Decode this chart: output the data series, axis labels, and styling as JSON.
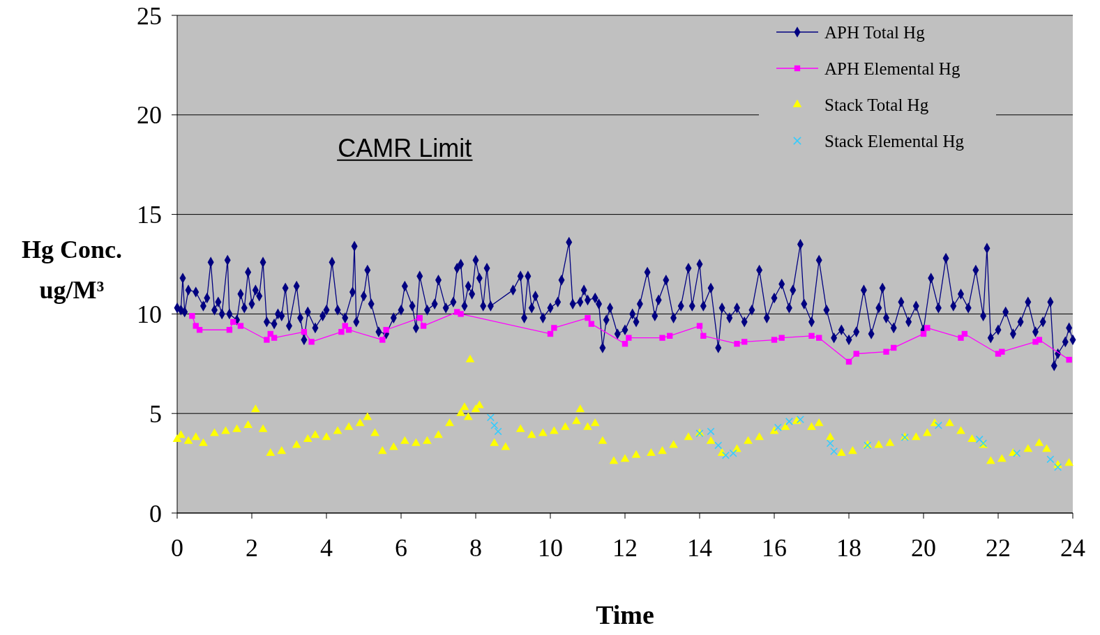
{
  "chart_data": {
    "type": "line",
    "xlabel": "Time",
    "ylabel": "Hg Conc. ug/M³",
    "xlim": [
      0,
      24
    ],
    "xticks": [
      0,
      2,
      4,
      6,
      8,
      10,
      12,
      14,
      16,
      18,
      20,
      22,
      24
    ],
    "ylim": [
      0,
      25
    ],
    "yticks": [
      0,
      5,
      10,
      15,
      20,
      25
    ],
    "grid": "y",
    "legend": "top right",
    "annotations": [
      "CAMR Limit"
    ],
    "series": [
      {
        "name": "APH Total Hg",
        "marker": "diamond",
        "color": "#000080",
        "x": [
          0,
          0.1,
          0.15,
          0.2,
          0.3,
          0.5,
          0.7,
          0.8,
          0.9,
          1.0,
          1.1,
          1.2,
          1.35,
          1.4,
          1.6,
          1.7,
          1.8,
          1.9,
          2.0,
          2.1,
          2.2,
          2.3,
          2.4,
          2.6,
          2.7,
          2.8,
          2.9,
          3.0,
          3.2,
          3.3,
          3.4,
          3.5,
          3.7,
          3.9,
          4.0,
          4.15,
          4.3,
          4.5,
          4.7,
          4.75,
          4.8,
          5.0,
          5.1,
          5.2,
          5.4,
          5.6,
          5.8,
          6.0,
          6.1,
          6.3,
          6.4,
          6.5,
          6.7,
          6.9,
          7.0,
          7.2,
          7.4,
          7.5,
          7.6,
          7.7,
          7.8,
          7.9,
          8.0,
          8.1,
          8.2,
          8.3,
          8.4,
          9.0,
          9.2,
          9.3,
          9.4,
          9.5,
          9.6,
          9.8,
          10.0,
          10.2,
          10.3,
          10.5,
          10.6,
          10.8,
          10.9,
          11.0,
          11.2,
          11.3,
          11.4,
          11.5,
          11.6,
          11.8,
          12.0,
          12.2,
          12.3,
          12.4,
          12.6,
          12.8,
          12.9,
          13.1,
          13.3,
          13.5,
          13.7,
          13.8,
          14.0,
          14.1,
          14.3,
          14.5,
          14.6,
          14.8,
          15.0,
          15.2,
          15.4,
          15.6,
          15.8,
          16.0,
          16.2,
          16.4,
          16.5,
          16.7,
          16.8,
          17.0,
          17.2,
          17.4,
          17.6,
          17.8,
          18.0,
          18.2,
          18.4,
          18.6,
          18.8,
          18.9,
          19.0,
          19.2,
          19.4,
          19.6,
          19.8,
          20.0,
          20.2,
          20.4,
          20.6,
          20.8,
          21.0,
          21.2,
          21.4,
          21.6,
          21.7,
          21.8,
          22.0,
          22.2,
          22.4,
          22.6,
          22.8,
          23.0,
          23.2,
          23.4,
          23.5,
          23.6,
          23.8,
          23.9,
          24.0
        ],
        "values": [
          10.3,
          10.2,
          11.8,
          10.1,
          11.2,
          11.1,
          10.4,
          10.8,
          12.6,
          10.2,
          10.6,
          10.0,
          12.7,
          10.0,
          9.7,
          11.0,
          10.3,
          12.1,
          10.5,
          11.2,
          10.9,
          12.6,
          9.6,
          9.5,
          10.0,
          9.9,
          11.3,
          9.4,
          11.4,
          9.8,
          8.7,
          10.1,
          9.3,
          9.9,
          10.2,
          12.6,
          10.2,
          9.8,
          11.1,
          13.4,
          9.6,
          10.9,
          12.2,
          10.5,
          9.1,
          9.0,
          9.8,
          10.2,
          11.4,
          10.4,
          9.3,
          11.9,
          10.2,
          10.5,
          11.7,
          10.3,
          10.6,
          12.3,
          12.5,
          10.4,
          11.4,
          11.0,
          12.7,
          11.8,
          10.4,
          12.3,
          10.4,
          11.2,
          11.9,
          9.8,
          11.9,
          10.3,
          10.9,
          9.8,
          10.3,
          10.6,
          11.7,
          13.6,
          10.5,
          10.6,
          11.2,
          10.7,
          10.8,
          10.5,
          8.3,
          9.7,
          10.3,
          9.0,
          9.2,
          10.0,
          9.6,
          10.5,
          12.1,
          9.9,
          10.7,
          11.7,
          9.8,
          10.4,
          12.3,
          10.4,
          12.5,
          10.4,
          11.3,
          8.3,
          10.3,
          9.8,
          10.3,
          9.6,
          10.2,
          12.2,
          9.8,
          10.8,
          11.5,
          10.3,
          11.2,
          13.5,
          10.5,
          9.6,
          12.7,
          10.2,
          8.8,
          9.2,
          8.7,
          9.1,
          11.2,
          9.0,
          10.3,
          11.3,
          9.8,
          9.3,
          10.6,
          9.6,
          10.4,
          9.2,
          11.8,
          10.3,
          12.8,
          10.4,
          11.0,
          10.3,
          12.2,
          9.9,
          13.3,
          8.8,
          9.2,
          10.1,
          9.0,
          9.6,
          10.6,
          9.1,
          9.6,
          10.6,
          7.4,
          8.0,
          8.6,
          9.3,
          8.7
        ]
      },
      {
        "name": "APH Elemental Hg",
        "marker": "square",
        "color": "#ff00ff",
        "x": [
          0.4,
          0.5,
          0.6,
          1.4,
          1.5,
          1.7,
          2.4,
          2.5,
          2.6,
          3.4,
          3.6,
          4.4,
          4.5,
          4.6,
          5.5,
          5.6,
          6.5,
          6.6,
          7.5,
          7.6,
          10.0,
          10.1,
          11.0,
          11.1,
          12.0,
          12.1,
          13.0,
          13.2,
          14.0,
          14.1,
          15.0,
          15.2,
          16.0,
          16.2,
          17.0,
          17.2,
          18.0,
          18.2,
          19.0,
          19.2,
          20.0,
          20.1,
          21.0,
          21.1,
          22.0,
          22.1,
          23.0,
          23.1,
          23.9
        ],
        "values": [
          9.9,
          9.4,
          9.2,
          9.2,
          9.6,
          9.4,
          8.7,
          9.0,
          8.8,
          9.1,
          8.6,
          9.1,
          9.4,
          9.2,
          8.7,
          9.2,
          9.8,
          9.4,
          10.1,
          10.0,
          9.0,
          9.3,
          9.8,
          9.5,
          8.5,
          8.8,
          8.8,
          8.9,
          9.4,
          8.9,
          8.5,
          8.6,
          8.7,
          8.8,
          8.9,
          8.8,
          7.6,
          8.0,
          8.1,
          8.3,
          9.0,
          9.3,
          8.8,
          9.0,
          8.0,
          8.1,
          8.6,
          8.7,
          7.7
        ]
      },
      {
        "name": "Stack Total Hg",
        "type": "scatter",
        "marker": "triangle",
        "color": "#ffff00",
        "x": [
          0,
          0.1,
          0.3,
          0.5,
          0.7,
          1.0,
          1.3,
          1.6,
          1.9,
          2.1,
          2.3,
          2.5,
          2.8,
          3.2,
          3.5,
          3.7,
          4.0,
          4.3,
          4.6,
          4.9,
          5.1,
          5.3,
          5.5,
          5.8,
          6.1,
          6.4,
          6.7,
          7.0,
          7.3,
          7.6,
          7.7,
          7.8,
          7.85,
          8.0,
          8.1,
          8.5,
          8.8,
          9.2,
          9.5,
          9.8,
          10.1,
          10.4,
          10.7,
          10.8,
          11.0,
          11.2,
          11.4,
          11.7,
          12.0,
          12.3,
          12.7,
          13.0,
          13.3,
          13.7,
          14.0,
          14.3,
          14.6,
          15.0,
          15.3,
          15.6,
          16.0,
          16.3,
          16.6,
          17.0,
          17.2,
          17.5,
          17.8,
          18.1,
          18.5,
          18.8,
          19.1,
          19.5,
          19.8,
          20.1,
          20.3,
          20.7,
          21.0,
          21.3,
          21.6,
          21.8,
          22.1,
          22.4,
          22.8,
          23.1,
          23.3,
          23.6,
          23.9
        ],
        "values": [
          3.7,
          3.9,
          3.6,
          3.8,
          3.5,
          4.0,
          4.1,
          4.2,
          4.4,
          5.2,
          4.2,
          3.0,
          3.1,
          3.4,
          3.7,
          3.9,
          3.8,
          4.1,
          4.3,
          4.5,
          4.8,
          4.0,
          3.1,
          3.3,
          3.6,
          3.5,
          3.6,
          3.9,
          4.5,
          5.0,
          5.3,
          4.8,
          7.7,
          5.2,
          5.4,
          3.5,
          3.3,
          4.2,
          3.9,
          4.0,
          4.1,
          4.3,
          4.6,
          5.2,
          4.3,
          4.5,
          3.6,
          2.6,
          2.7,
          2.9,
          3.0,
          3.1,
          3.4,
          3.8,
          4.0,
          3.6,
          3.0,
          3.2,
          3.6,
          3.8,
          4.1,
          4.3,
          4.6,
          4.3,
          4.5,
          3.8,
          3.0,
          3.1,
          3.4,
          3.4,
          3.5,
          3.8,
          3.8,
          4.0,
          4.5,
          4.5,
          4.1,
          3.7,
          3.4,
          2.6,
          2.7,
          3.0,
          3.2,
          3.5,
          3.2,
          2.4,
          2.5
        ]
      },
      {
        "name": "Stack Elemental Hg",
        "type": "scatter",
        "marker": "cross",
        "color": "#33ccff",
        "x": [
          8.4,
          8.5,
          8.6,
          14.0,
          14.3,
          14.5,
          14.7,
          14.9,
          16.1,
          16.4,
          16.7,
          17.5,
          17.6,
          18.5,
          19.5,
          20.4,
          21.5,
          21.6,
          22.5,
          23.4,
          23.6
        ],
        "values": [
          4.8,
          4.4,
          4.1,
          4.0,
          4.1,
          3.4,
          2.9,
          3.0,
          4.3,
          4.6,
          4.7,
          3.5,
          3.1,
          3.4,
          3.8,
          4.4,
          3.7,
          3.5,
          3.0,
          2.7,
          2.3
        ]
      }
    ]
  }
}
